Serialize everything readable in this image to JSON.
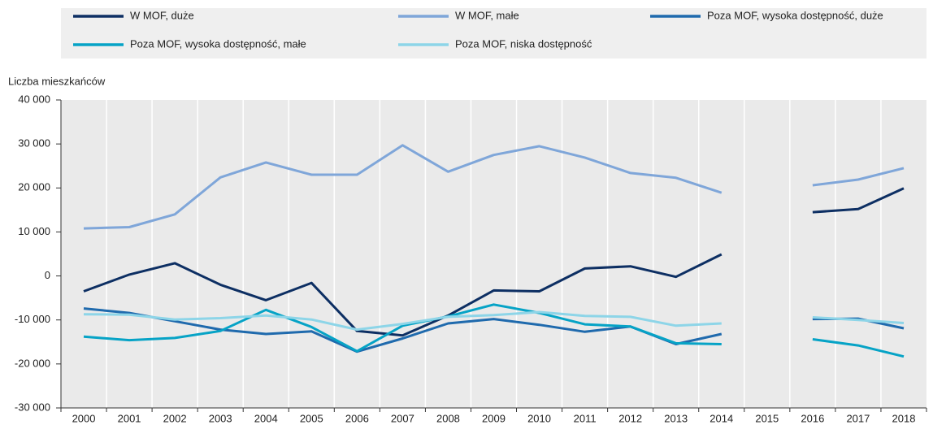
{
  "chart_data": {
    "type": "line",
    "y_label": "Liczba mieszkańców",
    "categories": [
      "2000",
      "2001",
      "2002",
      "2003",
      "2004",
      "2005",
      "2006",
      "2007",
      "2008",
      "2009",
      "2010",
      "2011",
      "2012",
      "2013",
      "2014",
      "2015",
      "2016",
      "2017",
      "2018"
    ],
    "series": [
      {
        "name": "W MOF, duże",
        "color": "#0d2f63",
        "values": [
          -3500,
          300,
          2900,
          -2000,
          -5500,
          -1600,
          -12500,
          -13500,
          -9000,
          -3300,
          -3500,
          1700,
          2200,
          -200,
          4900,
          null,
          14500,
          15200,
          19900
        ]
      },
      {
        "name": "W MOF, małe",
        "color": "#7fa6d9",
        "values": [
          10800,
          11100,
          14000,
          22400,
          25800,
          23000,
          23000,
          29700,
          23700,
          27500,
          29500,
          26900,
          23400,
          22300,
          18900,
          null,
          20600,
          21900,
          24500
        ]
      },
      {
        "name": "Poza MOF, wysoka dostępność, duże",
        "color": "#1f6aad",
        "values": [
          -7400,
          -8400,
          -10300,
          -12200,
          -13200,
          -12600,
          -17200,
          -14200,
          -10800,
          -9800,
          -11100,
          -12700,
          -11500,
          -15500,
          -13200,
          null,
          -9800,
          -9700,
          -11900
        ]
      },
      {
        "name": "Poza MOF, wysoka dostępność, małe",
        "color": "#06a3c6",
        "values": [
          -13800,
          -14600,
          -14100,
          -12500,
          -7700,
          -11600,
          -17100,
          -11300,
          -9200,
          -6500,
          -8400,
          -11000,
          -11500,
          -15300,
          -15500,
          null,
          -14400,
          -15800,
          -18300
        ]
      },
      {
        "name": "Poza MOF, niska dostępność",
        "color": "#8dd5e8",
        "values": [
          -8700,
          -8800,
          -9900,
          -9600,
          -9000,
          -9900,
          -12200,
          -10900,
          -9300,
          -8900,
          -8200,
          -9100,
          -9300,
          -11300,
          -10800,
          null,
          -9400,
          -10000,
          -10700
        ]
      }
    ],
    "ylim": [
      -30000,
      40000
    ],
    "yticks": [
      {
        "value": -30000,
        "label": "-30 000"
      },
      {
        "value": -20000,
        "label": "-20 000"
      },
      {
        "value": -10000,
        "label": "-10 000"
      },
      0,
      {
        "value": 10000,
        "label": "10 000"
      },
      {
        "value": 20000,
        "label": "20 000"
      },
      {
        "value": 30000,
        "label": "30 000"
      },
      {
        "value": 40000,
        "label": "40 000"
      }
    ]
  }
}
